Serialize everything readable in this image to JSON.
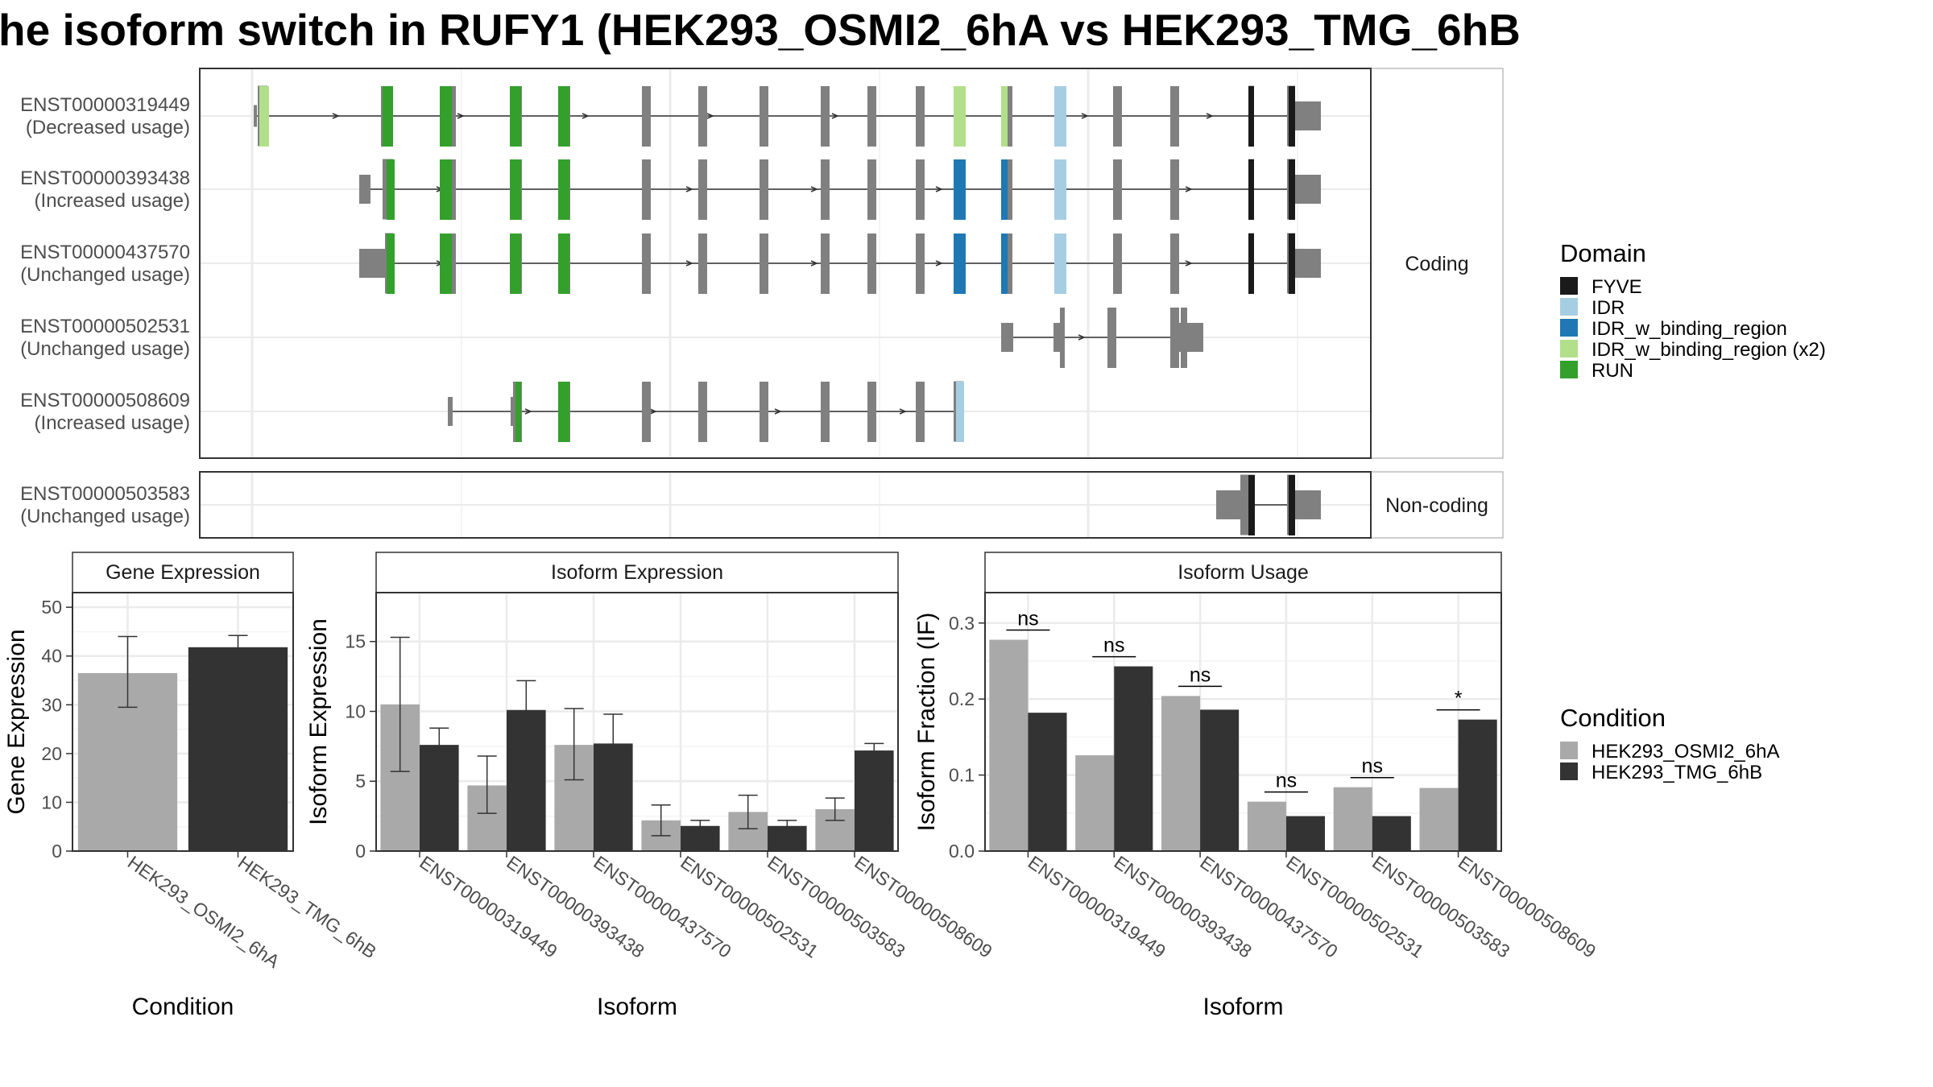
{
  "title": "he isoform switch in RUFY1 (HEK293_OSMI2_6hA vs HEK293_TMG_6hB",
  "colors": {
    "FYVE": "#1a1a1a",
    "IDR": "#a6cee3",
    "IDR_w_binding_region": "#1f78b4",
    "IDR_w_binding_region (x2)": "#b2df8a",
    "RUN": "#33a02c",
    "exon": "#808080",
    "cond1": "#a9a9a9",
    "cond2": "#333333"
  },
  "structure": {
    "facets": [
      "Coding",
      "Non-coding"
    ],
    "legend_title": "Domain",
    "legend_items": [
      "FYVE",
      "IDR",
      "IDR_w_binding_region",
      "IDR_w_binding_region (x2)",
      "RUN"
    ],
    "transcripts": [
      {
        "id": "ENST00000319449",
        "usage": "(Decreased usage)",
        "facet": "Coding"
      },
      {
        "id": "ENST00000393438",
        "usage": "(Increased usage)",
        "facet": "Coding"
      },
      {
        "id": "ENST00000437570",
        "usage": "(Unchanged usage)",
        "facet": "Coding"
      },
      {
        "id": "ENST00000502531",
        "usage": "(Unchanged usage)",
        "facet": "Coding"
      },
      {
        "id": "ENST00000508609",
        "usage": "(Increased usage)",
        "facet": "Coding"
      },
      {
        "id": "ENST00000503583",
        "usage": "(Unchanged usage)",
        "facet": "Non-coding"
      }
    ]
  },
  "chart_data": [
    {
      "type": "bar",
      "panel": "Gene Expression",
      "categories": [
        "HEK293_OSMI2_6hA",
        "HEK293_TMG_6hB"
      ],
      "values": [
        36.5,
        41.8
      ],
      "errors": [
        [
          29.5,
          44.0
        ],
        [
          39.3,
          44.2
        ]
      ],
      "xlabel": "Condition",
      "ylabel": "Gene Expression",
      "ylim": [
        0,
        53
      ],
      "yticks": [
        0,
        10,
        20,
        30,
        40,
        50
      ]
    },
    {
      "type": "bar",
      "panel": "Isoform Expression",
      "categories": [
        "ENST00000319449",
        "ENST00000393438",
        "ENST00000437570",
        "ENST00000502531",
        "ENST00000503583",
        "ENST00000508609"
      ],
      "series": [
        {
          "name": "HEK293_OSMI2_6hA",
          "values": [
            10.5,
            4.7,
            7.6,
            2.2,
            2.8,
            3.0
          ],
          "errors": [
            [
              5.7,
              15.3
            ],
            [
              2.7,
              6.8
            ],
            [
              5.1,
              10.2
            ],
            [
              1.1,
              3.3
            ],
            [
              1.6,
              4.0
            ],
            [
              2.2,
              3.8
            ]
          ]
        },
        {
          "name": "HEK293_TMG_6hB",
          "values": [
            7.6,
            10.1,
            7.7,
            1.8,
            1.8,
            7.2
          ],
          "errors": [
            [
              6.4,
              8.8
            ],
            [
              8.0,
              12.2
            ],
            [
              5.6,
              9.8
            ],
            [
              1.4,
              2.2
            ],
            [
              1.4,
              2.2
            ],
            [
              6.7,
              7.7
            ]
          ]
        }
      ],
      "xlabel": "Isoform",
      "ylabel": "Isoform Expression",
      "ylim": [
        0,
        18.5
      ],
      "yticks": [
        0,
        5,
        10,
        15
      ]
    },
    {
      "type": "bar",
      "panel": "Isoform Usage",
      "categories": [
        "ENST00000319449",
        "ENST00000393438",
        "ENST00000437570",
        "ENST00000502531",
        "ENST00000503583",
        "ENST00000508609"
      ],
      "series": [
        {
          "name": "HEK293_OSMI2_6hA",
          "values": [
            0.278,
            0.126,
            0.204,
            0.065,
            0.084,
            0.083
          ]
        },
        {
          "name": "HEK293_TMG_6hB",
          "values": [
            0.182,
            0.243,
            0.186,
            0.046,
            0.046,
            0.173
          ]
        }
      ],
      "significance": [
        "ns",
        "ns",
        "ns",
        "ns",
        "ns",
        "*"
      ],
      "xlabel": "Isoform",
      "ylabel": "Isoform Fraction (IF)",
      "ylim": [
        0,
        0.34
      ],
      "yticks": [
        0.0,
        0.1,
        0.2,
        0.3
      ],
      "legend_title": "Condition"
    }
  ]
}
